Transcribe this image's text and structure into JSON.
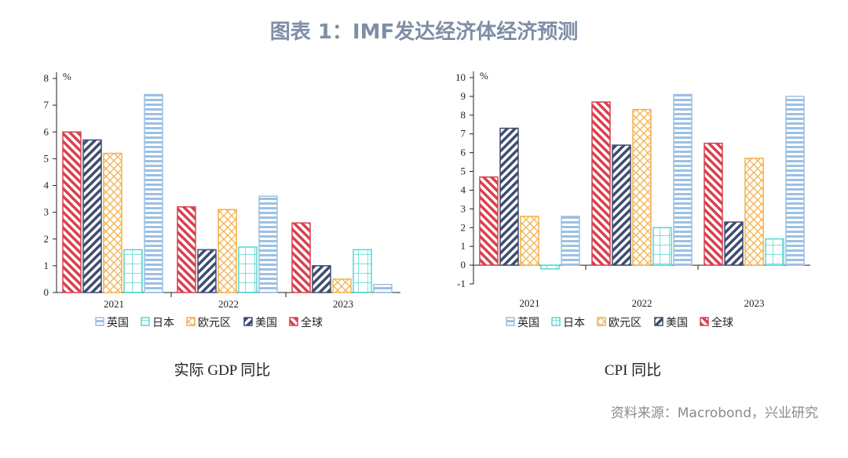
{
  "title": "图表 1：IMF发达经济体经济预测",
  "source": "资料来源：Macrobond，兴业研究",
  "colors": {
    "全球": "#d8404f",
    "美国": "#3d4c6e",
    "欧元区": "#f4b04a",
    "日本": "#58d6cf",
    "英国": "#9cc0e4"
  },
  "chart_data": [
    {
      "type": "bar",
      "caption": "实际 GDP 同比",
      "unit": "%",
      "categories": [
        "2021",
        "2022",
        "2023"
      ],
      "ylim": [
        0,
        8
      ],
      "yticks": [
        0,
        1,
        2,
        3,
        4,
        5,
        6,
        7,
        8
      ],
      "legend": [
        "英国",
        "日本",
        "欧元区",
        "美国",
        "全球"
      ],
      "legend_position": "bottom",
      "series": [
        {
          "name": "全球",
          "values": [
            6.0,
            3.2,
            2.6
          ]
        },
        {
          "name": "美国",
          "values": [
            5.7,
            1.6,
            1.0
          ]
        },
        {
          "name": "欧元区",
          "values": [
            5.2,
            3.1,
            0.5
          ]
        },
        {
          "name": "日本",
          "values": [
            1.6,
            1.7,
            1.6
          ]
        },
        {
          "name": "英国",
          "values": [
            7.4,
            3.6,
            0.3
          ]
        }
      ]
    },
    {
      "type": "bar",
      "caption": "CPI 同比",
      "unit": "%",
      "categories": [
        "2021",
        "2022",
        "2023"
      ],
      "ylim": [
        -1,
        10
      ],
      "yticks": [
        -1,
        0,
        1,
        2,
        3,
        4,
        5,
        6,
        7,
        8,
        9,
        10
      ],
      "legend": [
        "英国",
        "日本",
        "欧元区",
        "美国",
        "全球"
      ],
      "legend_position": "bottom",
      "series": [
        {
          "name": "全球",
          "values": [
            4.7,
            8.7,
            6.5
          ]
        },
        {
          "name": "美国",
          "values": [
            7.3,
            6.4,
            2.3
          ]
        },
        {
          "name": "欧元区",
          "values": [
            2.6,
            8.3,
            5.7
          ]
        },
        {
          "name": "日本",
          "values": [
            -0.2,
            2.0,
            1.4
          ]
        },
        {
          "name": "英国",
          "values": [
            2.6,
            9.1,
            9.0
          ]
        }
      ]
    }
  ]
}
